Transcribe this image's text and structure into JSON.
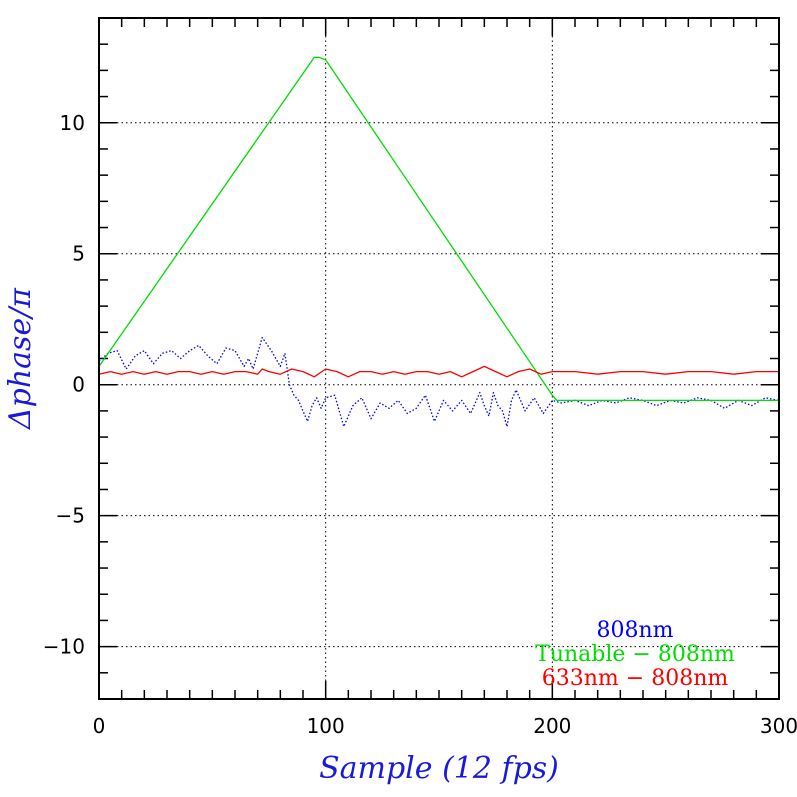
{
  "chart_data": {
    "type": "line",
    "xlabel": "Sample (12 fps)",
    "ylabel": "Δphase/π",
    "xlim": [
      0,
      300
    ],
    "ylim": [
      -12,
      14
    ],
    "x_ticks": [
      0,
      100,
      200,
      300
    ],
    "x_tick_labels": [
      "0",
      "100",
      "200",
      "300"
    ],
    "y_ticks": [
      -10,
      -5,
      0,
      5,
      10
    ],
    "y_tick_labels": [
      "−10",
      "−5",
      "0",
      "5",
      "10"
    ],
    "grid": true,
    "legend_position": "bottom-right",
    "colors": {
      "axis": "#000000",
      "grid": "#000000",
      "label": "#1a1adb"
    },
    "series": [
      {
        "name": "808nm",
        "color": "#0000ff",
        "style": "dotted",
        "x": [
          0,
          4,
          8,
          12,
          16,
          20,
          24,
          28,
          32,
          36,
          40,
          44,
          48,
          52,
          56,
          60,
          64,
          66,
          68,
          72,
          76,
          80,
          82,
          84,
          86,
          88,
          90,
          92,
          94,
          96,
          98,
          100,
          104,
          108,
          112,
          116,
          120,
          124,
          128,
          132,
          136,
          140,
          144,
          148,
          152,
          156,
          160,
          164,
          168,
          170,
          172,
          174,
          176,
          178,
          180,
          182,
          184,
          188,
          192,
          196,
          200,
          204,
          210,
          216,
          222,
          228,
          234,
          240,
          246,
          252,
          258,
          264,
          270,
          276,
          282,
          288,
          294,
          300
        ],
        "y": [
          0.9,
          1.2,
          1.3,
          0.6,
          1.1,
          1.3,
          0.8,
          1.2,
          1.3,
          1.0,
          1.3,
          1.5,
          1.1,
          0.8,
          1.4,
          1.3,
          0.7,
          1.0,
          0.6,
          1.8,
          1.3,
          0.7,
          1.2,
          0.0,
          -0.4,
          -0.6,
          -1.0,
          -1.4,
          -0.8,
          -0.5,
          -0.9,
          -0.5,
          -0.4,
          -1.6,
          -0.8,
          -0.5,
          -1.3,
          -0.7,
          -0.9,
          -0.6,
          -1.1,
          -0.9,
          -0.4,
          -1.4,
          -0.6,
          -1.0,
          -0.6,
          -1.1,
          -0.3,
          -0.8,
          -1.2,
          -0.3,
          -0.8,
          -1.0,
          -1.6,
          -0.6,
          -0.2,
          -1.0,
          -0.5,
          -1.1,
          -0.6,
          -0.7,
          -0.6,
          -0.8,
          -0.6,
          -0.7,
          -0.5,
          -0.6,
          -0.8,
          -0.6,
          -0.7,
          -0.5,
          -0.6,
          -0.9,
          -0.6,
          -0.8,
          -0.5,
          -0.6
        ]
      },
      {
        "name": "Tunable − 808nm",
        "color": "#00dd00",
        "style": "solid",
        "x": [
          0,
          95,
          97,
          100,
          200,
          202,
          300
        ],
        "y": [
          0.7,
          12.5,
          12.5,
          12.4,
          -0.4,
          -0.6,
          -0.6
        ]
      },
      {
        "name": "633nm − 808nm",
        "color": "#ff0000",
        "style": "solid",
        "x": [
          0,
          5,
          10,
          15,
          20,
          25,
          30,
          35,
          40,
          45,
          50,
          55,
          60,
          65,
          70,
          72,
          75,
          80,
          85,
          90,
          95,
          100,
          105,
          110,
          115,
          120,
          125,
          130,
          135,
          140,
          145,
          150,
          155,
          160,
          165,
          170,
          175,
          180,
          185,
          190,
          195,
          200,
          210,
          220,
          230,
          240,
          250,
          260,
          270,
          280,
          290,
          300
        ],
        "y": [
          0.4,
          0.5,
          0.4,
          0.5,
          0.4,
          0.5,
          0.4,
          0.5,
          0.5,
          0.4,
          0.5,
          0.4,
          0.5,
          0.5,
          0.4,
          0.6,
          0.5,
          0.4,
          0.6,
          0.5,
          0.3,
          0.6,
          0.5,
          0.3,
          0.5,
          0.5,
          0.4,
          0.5,
          0.4,
          0.5,
          0.5,
          0.4,
          0.5,
          0.3,
          0.5,
          0.7,
          0.5,
          0.3,
          0.5,
          0.6,
          0.4,
          0.5,
          0.5,
          0.4,
          0.5,
          0.5,
          0.4,
          0.5,
          0.5,
          0.4,
          0.5,
          0.5
        ]
      }
    ]
  }
}
